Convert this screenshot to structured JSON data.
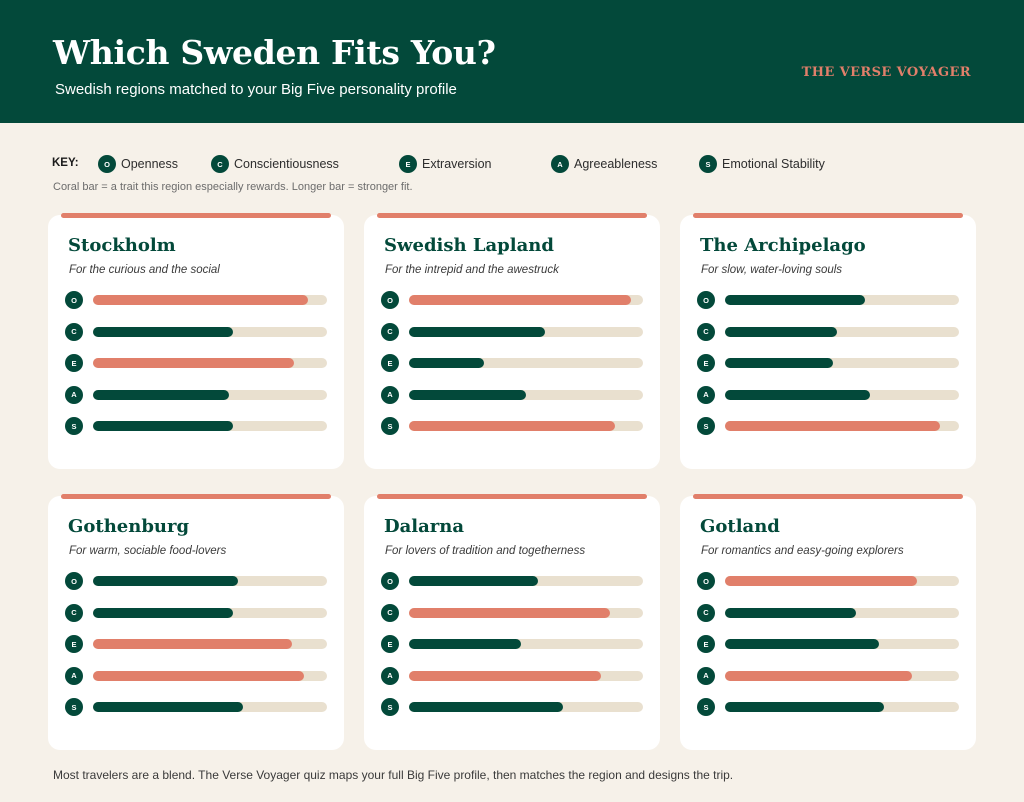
{
  "header": {
    "title": "Which Sweden Fits You?",
    "subtitle": "Swedish regions matched to your Big Five personality profile",
    "brand": "THE VERSE VOYAGER"
  },
  "key": {
    "label": "KEY:",
    "items": [
      {
        "letter": "O",
        "name": "Openness"
      },
      {
        "letter": "C",
        "name": "Conscientiousness"
      },
      {
        "letter": "E",
        "name": "Extraversion"
      },
      {
        "letter": "A",
        "name": "Agreeableness"
      },
      {
        "letter": "S",
        "name": "Emotional Stability"
      }
    ],
    "note": "Coral bar = a trait this region especially rewards. Longer bar = stronger fit."
  },
  "colors": {
    "brand_green": "#03493a",
    "coral": "#e17f6a",
    "track": "#e9e0cf",
    "background": "#f6f1e9"
  },
  "regions": [
    {
      "name": "Stockholm",
      "tagline": "For the curious and the social",
      "traits": [
        {
          "letter": "O",
          "fit": 0.92,
          "emphasized": true
        },
        {
          "letter": "C",
          "fit": 0.6,
          "emphasized": false
        },
        {
          "letter": "E",
          "fit": 0.86,
          "emphasized": true
        },
        {
          "letter": "A",
          "fit": 0.58,
          "emphasized": false
        },
        {
          "letter": "S",
          "fit": 0.6,
          "emphasized": false
        }
      ]
    },
    {
      "name": "Swedish Lapland",
      "tagline": "For the intrepid and the awestruck",
      "traits": [
        {
          "letter": "O",
          "fit": 0.95,
          "emphasized": true
        },
        {
          "letter": "C",
          "fit": 0.58,
          "emphasized": false
        },
        {
          "letter": "E",
          "fit": 0.32,
          "emphasized": false
        },
        {
          "letter": "A",
          "fit": 0.5,
          "emphasized": false
        },
        {
          "letter": "S",
          "fit": 0.88,
          "emphasized": true
        }
      ]
    },
    {
      "name": "The Archipelago",
      "tagline": "For slow, water-loving souls",
      "traits": [
        {
          "letter": "O",
          "fit": 0.6,
          "emphasized": false
        },
        {
          "letter": "C",
          "fit": 0.48,
          "emphasized": false
        },
        {
          "letter": "E",
          "fit": 0.46,
          "emphasized": false
        },
        {
          "letter": "A",
          "fit": 0.62,
          "emphasized": false
        },
        {
          "letter": "S",
          "fit": 0.92,
          "emphasized": true
        }
      ]
    },
    {
      "name": "Gothenburg",
      "tagline": "For warm, sociable food-lovers",
      "traits": [
        {
          "letter": "O",
          "fit": 0.62,
          "emphasized": false
        },
        {
          "letter": "C",
          "fit": 0.6,
          "emphasized": false
        },
        {
          "letter": "E",
          "fit": 0.85,
          "emphasized": true
        },
        {
          "letter": "A",
          "fit": 0.9,
          "emphasized": true
        },
        {
          "letter": "S",
          "fit": 0.64,
          "emphasized": false
        }
      ]
    },
    {
      "name": "Dalarna",
      "tagline": "For lovers of tradition and togetherness",
      "traits": [
        {
          "letter": "O",
          "fit": 0.55,
          "emphasized": false
        },
        {
          "letter": "C",
          "fit": 0.86,
          "emphasized": true
        },
        {
          "letter": "E",
          "fit": 0.48,
          "emphasized": false
        },
        {
          "letter": "A",
          "fit": 0.82,
          "emphasized": true
        },
        {
          "letter": "S",
          "fit": 0.66,
          "emphasized": false
        }
      ]
    },
    {
      "name": "Gotland",
      "tagline": "For romantics and easy-going explorers",
      "traits": [
        {
          "letter": "O",
          "fit": 0.82,
          "emphasized": true
        },
        {
          "letter": "C",
          "fit": 0.56,
          "emphasized": false
        },
        {
          "letter": "E",
          "fit": 0.66,
          "emphasized": false
        },
        {
          "letter": "A",
          "fit": 0.8,
          "emphasized": true
        },
        {
          "letter": "S",
          "fit": 0.68,
          "emphasized": false
        }
      ]
    }
  ],
  "footer": "Most travelers are a blend. The Verse Voyager quiz maps your full Big Five profile, then matches the region and designs the trip."
}
